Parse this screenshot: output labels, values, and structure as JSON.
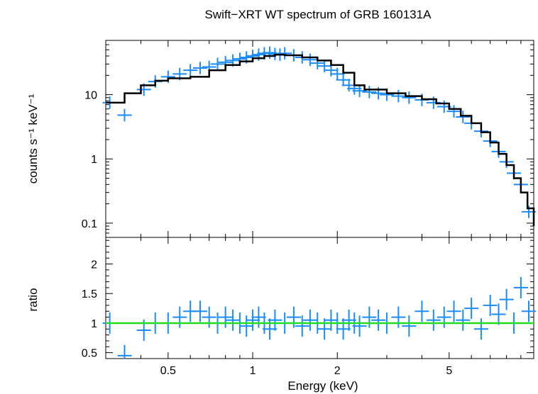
{
  "chart_data": [
    {
      "type": "scatter",
      "title": "Swift−XRT WT spectrum of GRB 160131A",
      "xlabel": "",
      "ylabel": "counts s⁻¹ keV⁻¹",
      "xscale": "log",
      "yscale": "log",
      "xlim": [
        0.3,
        10
      ],
      "ylim": [
        0.06,
        70
      ],
      "y_tick_labels": [
        "0.1",
        "1",
        "10"
      ],
      "series": [
        {
          "kind": "data-with-errors",
          "color": "#1a8cff",
          "points": [
            [
              0.31,
              7.5
            ],
            [
              0.35,
              4.8
            ],
            [
              0.41,
              12
            ],
            [
              0.45,
              16
            ],
            [
              0.5,
              19
            ],
            [
              0.55,
              21
            ],
            [
              0.6,
              24
            ],
            [
              0.65,
              26
            ],
            [
              0.7,
              27
            ],
            [
              0.75,
              30
            ],
            [
              0.8,
              32
            ],
            [
              0.85,
              34
            ],
            [
              0.9,
              36
            ],
            [
              0.95,
              38
            ],
            [
              1.0,
              40
            ],
            [
              1.05,
              42
            ],
            [
              1.1,
              44
            ],
            [
              1.15,
              45
            ],
            [
              1.2,
              43
            ],
            [
              1.25,
              42
            ],
            [
              1.3,
              44
            ],
            [
              1.4,
              41
            ],
            [
              1.5,
              38
            ],
            [
              1.6,
              35
            ],
            [
              1.7,
              31
            ],
            [
              1.8,
              28
            ],
            [
              1.9,
              24
            ],
            [
              2.0,
              21
            ],
            [
              2.1,
              17
            ],
            [
              2.2,
              14
            ],
            [
              2.3,
              12.5
            ],
            [
              2.4,
              11.5
            ],
            [
              2.6,
              11
            ],
            [
              2.8,
              10.5
            ],
            [
              3.0,
              10
            ],
            [
              3.3,
              9.5
            ],
            [
              3.6,
              9
            ],
            [
              4.0,
              8.3
            ],
            [
              4.4,
              7.5
            ],
            [
              4.8,
              6.5
            ],
            [
              5.2,
              5.5
            ],
            [
              5.6,
              4.5
            ],
            [
              6.0,
              3.6
            ],
            [
              6.5,
              2.7
            ],
            [
              7.0,
              1.9
            ],
            [
              7.5,
              1.3
            ],
            [
              8.0,
              0.9
            ],
            [
              8.5,
              0.6
            ],
            [
              9.0,
              0.4
            ],
            [
              9.6,
              0.15
            ]
          ]
        },
        {
          "kind": "model-step",
          "color": "#000000",
          "points": [
            [
              0.3,
              7.5
            ],
            [
              0.35,
              10.5
            ],
            [
              0.4,
              14
            ],
            [
              0.45,
              16.5
            ],
            [
              0.5,
              18
            ],
            [
              0.6,
              19
            ],
            [
              0.7,
              24
            ],
            [
              0.8,
              29
            ],
            [
              0.9,
              33
            ],
            [
              1.0,
              37
            ],
            [
              1.1,
              40
            ],
            [
              1.2,
              42
            ],
            [
              1.3,
              41
            ],
            [
              1.5,
              38
            ],
            [
              1.7,
              34
            ],
            [
              1.9,
              29
            ],
            [
              2.1,
              22
            ],
            [
              2.3,
              14
            ],
            [
              2.5,
              12
            ],
            [
              3.0,
              10.5
            ],
            [
              3.5,
              9.5
            ],
            [
              4.0,
              8.5
            ],
            [
              4.5,
              7.3
            ],
            [
              5.0,
              6
            ],
            [
              5.5,
              4.7
            ],
            [
              6.0,
              3.6
            ],
            [
              6.5,
              2.6
            ],
            [
              7.0,
              1.8
            ],
            [
              7.5,
              1.2
            ],
            [
              8.0,
              0.8
            ],
            [
              8.5,
              0.5
            ],
            [
              9.0,
              0.3
            ],
            [
              9.5,
              0.17
            ],
            [
              10.0,
              0.09
            ]
          ]
        }
      ]
    },
    {
      "type": "scatter",
      "title": "",
      "xlabel": "Energy (keV)",
      "ylabel": "ratio",
      "xscale": "log",
      "yscale": "linear",
      "xlim": [
        0.3,
        10
      ],
      "ylim": [
        0.4,
        2.45
      ],
      "x_tick_labels": [
        "0.5",
        "1",
        "2",
        "5"
      ],
      "y_tick_labels": [
        "0.5",
        "1",
        "1.5",
        "2"
      ],
      "series": [
        {
          "kind": "data-with-errors",
          "color": "#1a8cff",
          "points": [
            [
              0.31,
              1.0
            ],
            [
              0.35,
              0.45
            ],
            [
              0.41,
              0.88
            ],
            [
              0.45,
              1.0
            ],
            [
              0.5,
              1.0
            ],
            [
              0.55,
              1.1
            ],
            [
              0.6,
              1.2
            ],
            [
              0.65,
              1.2
            ],
            [
              0.7,
              1.1
            ],
            [
              0.75,
              1.0
            ],
            [
              0.8,
              1.1
            ],
            [
              0.85,
              1.05
            ],
            [
              0.9,
              1.0
            ],
            [
              0.95,
              0.95
            ],
            [
              1.0,
              1.05
            ],
            [
              1.05,
              1.1
            ],
            [
              1.1,
              1.0
            ],
            [
              1.15,
              0.9
            ],
            [
              1.2,
              1.05
            ],
            [
              1.3,
              1.0
            ],
            [
              1.4,
              1.1
            ],
            [
              1.5,
              0.95
            ],
            [
              1.6,
              1.05
            ],
            [
              1.7,
              1.0
            ],
            [
              1.8,
              0.9
            ],
            [
              1.9,
              1.05
            ],
            [
              2.0,
              1.0
            ],
            [
              2.1,
              0.9
            ],
            [
              2.2,
              1.05
            ],
            [
              2.3,
              1.0
            ],
            [
              2.4,
              0.95
            ],
            [
              2.6,
              1.1
            ],
            [
              2.8,
              1.05
            ],
            [
              3.0,
              1.0
            ],
            [
              3.3,
              1.1
            ],
            [
              3.6,
              0.95
            ],
            [
              4.0,
              1.2
            ],
            [
              4.4,
              1.05
            ],
            [
              4.8,
              1.1
            ],
            [
              5.2,
              1.2
            ],
            [
              5.6,
              1.05
            ],
            [
              6.0,
              1.25
            ],
            [
              6.5,
              0.9
            ],
            [
              7.0,
              1.3
            ],
            [
              7.5,
              1.15
            ],
            [
              8.0,
              1.4
            ],
            [
              8.5,
              1.0
            ],
            [
              9.0,
              1.6
            ],
            [
              9.6,
              1.2
            ]
          ]
        },
        {
          "kind": "reference-line",
          "color": "#22dd22",
          "value": 1.0
        }
      ]
    }
  ]
}
